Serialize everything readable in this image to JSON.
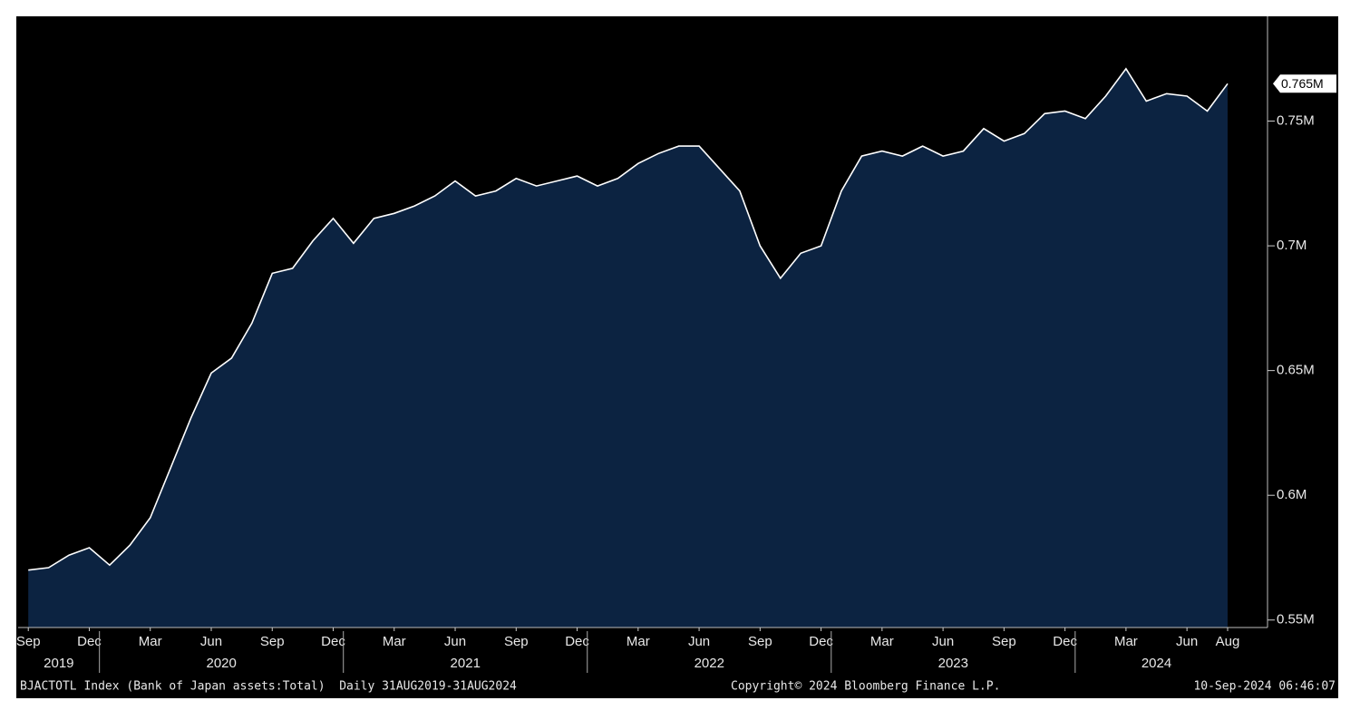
{
  "chart_data": {
    "type": "area",
    "x": [
      "2019-09",
      "2019-10",
      "2019-11",
      "2019-12",
      "2020-01",
      "2020-02",
      "2020-03",
      "2020-04",
      "2020-05",
      "2020-06",
      "2020-07",
      "2020-08",
      "2020-09",
      "2020-10",
      "2020-11",
      "2020-12",
      "2021-01",
      "2021-02",
      "2021-03",
      "2021-04",
      "2021-05",
      "2021-06",
      "2021-07",
      "2021-08",
      "2021-09",
      "2021-10",
      "2021-11",
      "2021-12",
      "2022-01",
      "2022-02",
      "2022-03",
      "2022-04",
      "2022-05",
      "2022-06",
      "2022-07",
      "2022-08",
      "2022-09",
      "2022-10",
      "2022-11",
      "2022-12",
      "2023-01",
      "2023-02",
      "2023-03",
      "2023-04",
      "2023-05",
      "2023-06",
      "2023-07",
      "2023-08",
      "2023-09",
      "2023-10",
      "2023-11",
      "2023-12",
      "2024-01",
      "2024-02",
      "2024-03",
      "2024-04",
      "2024-05",
      "2024-06",
      "2024-07",
      "2024-08"
    ],
    "series": [
      {
        "color": "#ffffff",
        "fill": "#0c2341",
        "values": [
          0.57,
          0.571,
          0.576,
          0.579,
          0.572,
          0.58,
          0.591,
          0.611,
          0.631,
          0.649,
          0.655,
          0.669,
          0.689,
          0.691,
          0.702,
          0.711,
          0.701,
          0.711,
          0.713,
          0.716,
          0.72,
          0.726,
          0.72,
          0.722,
          0.727,
          0.724,
          0.726,
          0.728,
          0.724,
          0.727,
          0.733,
          0.737,
          0.74,
          0.74,
          0.731,
          0.722,
          0.7,
          0.687,
          0.697,
          0.7,
          0.722,
          0.736,
          0.738,
          0.736,
          0.74,
          0.736,
          0.738,
          0.747,
          0.742,
          0.745,
          0.753,
          0.754,
          0.751,
          0.76,
          0.771,
          0.758,
          0.761,
          0.76,
          0.754,
          0.765
        ]
      }
    ],
    "last_value_label": "0.765M",
    "ylim": [
      0.547,
      0.792
    ],
    "yticks": [
      {
        "value": 0.55,
        "label": "0.55M"
      },
      {
        "value": 0.6,
        "label": "0.6M"
      },
      {
        "value": 0.65,
        "label": "0.65M"
      },
      {
        "value": 0.7,
        "label": "0.7M"
      },
      {
        "value": 0.75,
        "label": "0.75M"
      }
    ],
    "xticks": [
      {
        "value": "2019-09",
        "label": "Sep"
      },
      {
        "value": "2019-12",
        "label": "Dec"
      },
      {
        "value": "2020-03",
        "label": "Mar"
      },
      {
        "value": "2020-06",
        "label": "Jun"
      },
      {
        "value": "2020-09",
        "label": "Sep"
      },
      {
        "value": "2020-12",
        "label": "Dec"
      },
      {
        "value": "2021-03",
        "label": "Mar"
      },
      {
        "value": "2021-06",
        "label": "Jun"
      },
      {
        "value": "2021-09",
        "label": "Sep"
      },
      {
        "value": "2021-12",
        "label": "Dec"
      },
      {
        "value": "2022-03",
        "label": "Mar"
      },
      {
        "value": "2022-06",
        "label": "Jun"
      },
      {
        "value": "2022-09",
        "label": "Sep"
      },
      {
        "value": "2022-12",
        "label": "Dec"
      },
      {
        "value": "2023-03",
        "label": "Mar"
      },
      {
        "value": "2023-06",
        "label": "Jun"
      },
      {
        "value": "2023-09",
        "label": "Sep"
      },
      {
        "value": "2023-12",
        "label": "Dec"
      },
      {
        "value": "2024-03",
        "label": "Mar"
      },
      {
        "value": "2024-06",
        "label": "Jun"
      },
      {
        "value": "2024-08",
        "label": "Aug"
      }
    ],
    "years": [
      "2019",
      "2020",
      "2021",
      "2022",
      "2023",
      "2024"
    ],
    "footer": {
      "source": "BJACTOTL Index (Bank of Japan assets:Total)  Daily 31AUG2019-31AUG2024",
      "copyright": "Copyright© 2024 Bloomberg Finance L.P.",
      "timestamp": "10-Sep-2024 06:46:07"
    }
  }
}
